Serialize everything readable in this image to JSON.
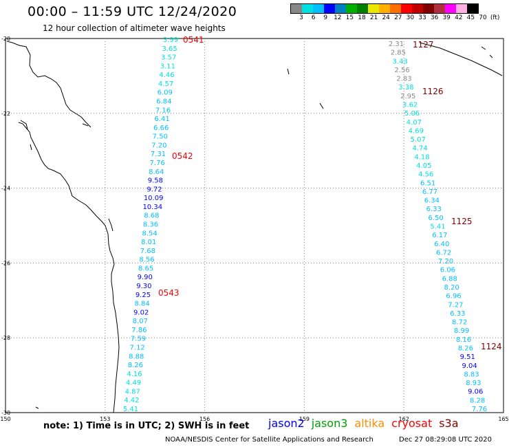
{
  "header": {
    "title": "00:00 – 11:59 UTC 12/24/2020",
    "subtitle": "12 hour collection of altimeter wave heights"
  },
  "legend": {
    "colors": [
      "#888888",
      "#00e0e0",
      "#00c0ff",
      "#0000ff",
      "#0080c0",
      "#00b000",
      "#008000",
      "#e8e800",
      "#ffb000",
      "#ff7000",
      "#ff0000",
      "#c00000",
      "#800000",
      "#b03040",
      "#ff00ff",
      "#ffb0e0",
      "#000000"
    ],
    "labels": [
      "3",
      "6",
      "9",
      "12",
      "15",
      "18",
      "21",
      "24",
      "27",
      "30",
      "33",
      "36",
      "39",
      "42",
      "45",
      "70",
      "(ft)"
    ]
  },
  "map": {
    "lat_labels": [
      "-20",
      "-22",
      "-24",
      "-26",
      "-28",
      "-30"
    ],
    "lon_labels": [
      "150",
      "153",
      "156",
      "159",
      "162",
      "165"
    ],
    "colors": {
      "coast": "#000000",
      "grid": "#808080",
      "time_label": "#ff0000",
      "time_label_dark": "#800000"
    },
    "track_left": {
      "values": [
        "3.99",
        "3.65",
        "3.57",
        "3.11",
        "4.46",
        "4.57",
        "6.09",
        "6.84",
        "7.16",
        "6.41",
        "6.66",
        "7.50",
        "7.20",
        "7.31",
        "7.76",
        "8.64",
        "9.58",
        "9.72",
        "10.09",
        "10.34",
        "8.68",
        "8.36",
        "8.54",
        "8.01",
        "7.68",
        "8.56",
        "8.65",
        "9.90",
        "9.30",
        "9.25",
        "8.84",
        "9.02",
        "8.07",
        "7.86",
        "7.59",
        "7.12",
        "8.88",
        "8.26",
        "4.16",
        "4.49",
        "4.87",
        "4.42",
        "5.41"
      ],
      "time_labels": [
        "0541",
        "0542",
        "0543"
      ]
    },
    "track_right": {
      "values": [
        "2.31",
        "2.85",
        "3.43",
        "2.56",
        "2.83",
        "3.38",
        "2.95",
        "3.62",
        "5.06",
        "4.07",
        "4.69",
        "5.07",
        "4.74",
        "4.18",
        "4.05",
        "4.56",
        "6.51",
        "6.77",
        "6.34",
        "6.33",
        "6.50",
        "5.41",
        "6.17",
        "6.40",
        "6.72",
        "7.20",
        "6.06",
        "6.88",
        "8.20",
        "6.96",
        "7.27",
        "6.33",
        "8.72",
        "8.99",
        "8.16",
        "8.26",
        "9.51",
        "9.04",
        "8.83",
        "8.93",
        "9.06",
        "8.28",
        "7.76"
      ],
      "time_labels": [
        "1127",
        "1126",
        "1125",
        "1124"
      ]
    }
  },
  "footer": {
    "note": "note: 1) Time is in UTC; 2) SWH is in feet",
    "satellites": [
      {
        "name": "jason2",
        "color": "#0000ff"
      },
      {
        "name": "jason3",
        "color": "#00a000"
      },
      {
        "name": "altika",
        "color": "#ff8c00"
      },
      {
        "name": "cryosat",
        "color": "#ff0000"
      },
      {
        "name": "s3a",
        "color": "#800000"
      }
    ],
    "credit": "NOAA/NESDIS Center for Satellite Applications and Research",
    "timestamp": "Dec 27 08:29:08 UTC 2020"
  }
}
